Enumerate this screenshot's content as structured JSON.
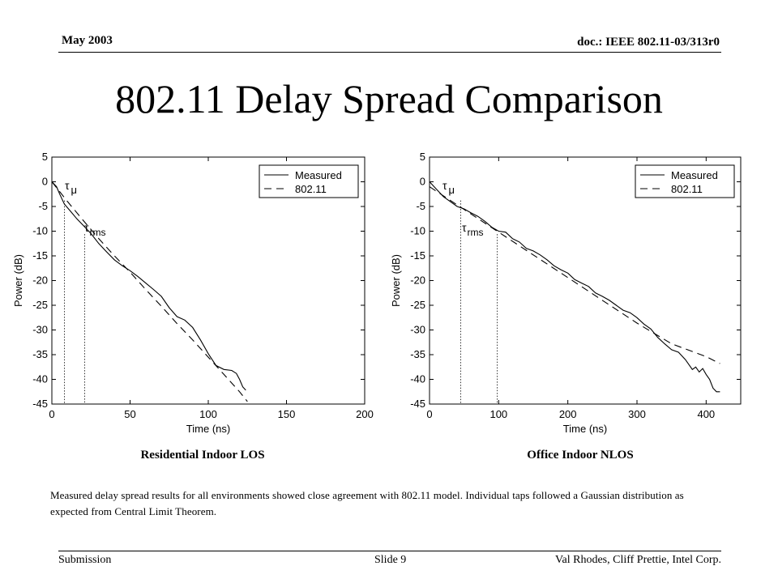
{
  "header": {
    "date": "May 2003",
    "doc": "doc.: IEEE 802.11-03/313r0"
  },
  "title": "802.11 Delay Spread Comparison",
  "chart_data": [
    {
      "type": "line",
      "xlabel": "Time (ns)",
      "ylabel": "Power (dB)",
      "xlim": [
        0,
        200
      ],
      "ylim": [
        -45,
        5
      ],
      "xticks": [
        0,
        50,
        100,
        150,
        200
      ],
      "yticks": [
        5,
        0,
        -5,
        -10,
        -15,
        -20,
        -25,
        -30,
        -35,
        -40,
        -45
      ],
      "legend": {
        "placement": "top-right",
        "entries": [
          "Measured",
          "802.11"
        ]
      },
      "annotations": {
        "tau_mu": 8,
        "tau_rms": 21
      },
      "series": [
        {
          "name": "Measured",
          "style": "solid",
          "x": [
            0,
            3,
            5,
            8,
            12,
            16,
            20,
            25,
            30,
            35,
            40,
            45,
            50,
            55,
            60,
            65,
            70,
            75,
            80,
            85,
            90,
            95,
            100,
            105,
            110,
            115,
            118,
            120,
            122,
            124
          ],
          "y": [
            0,
            -1,
            -2.5,
            -4.5,
            -6,
            -7.5,
            -8.8,
            -10.5,
            -12.5,
            -14.2,
            -15.8,
            -17,
            -18,
            -19.2,
            -20.5,
            -21.8,
            -23.2,
            -25.5,
            -27.3,
            -28,
            -29.5,
            -32,
            -34.8,
            -37.2,
            -38,
            -38.2,
            -38.8,
            -40,
            -41.5,
            -42.2
          ]
        },
        {
          "name": "802.11",
          "style": "dashed",
          "x": [
            0,
            10,
            20,
            30,
            40,
            50,
            60,
            70,
            80,
            90,
            100,
            110,
            120,
            125
          ],
          "y": [
            0,
            -4,
            -7.8,
            -11.5,
            -15,
            -18.3,
            -21.8,
            -25.2,
            -28.7,
            -32,
            -35.5,
            -39,
            -42.5,
            -44.5
          ]
        }
      ]
    },
    {
      "type": "line",
      "xlabel": "Time (ns)",
      "ylabel": "Power (dB)",
      "xlim": [
        0,
        450
      ],
      "ylim": [
        -45,
        5
      ],
      "xticks": [
        0,
        100,
        200,
        300,
        400
      ],
      "yticks": [
        5,
        0,
        -5,
        -10,
        -15,
        -20,
        -25,
        -30,
        -35,
        -40,
        -45
      ],
      "legend": {
        "placement": "top-right",
        "entries": [
          "Measured",
          "802.11"
        ]
      },
      "annotations": {
        "tau_mu": 45,
        "tau_rms": 98
      },
      "series": [
        {
          "name": "Measured",
          "style": "solid",
          "x": [
            0,
            10,
            20,
            30,
            40,
            50,
            60,
            70,
            80,
            90,
            100,
            110,
            120,
            130,
            140,
            150,
            160,
            170,
            180,
            190,
            200,
            210,
            220,
            230,
            240,
            250,
            260,
            270,
            280,
            290,
            300,
            310,
            320,
            330,
            340,
            350,
            360,
            370,
            375,
            380,
            385,
            390,
            395,
            400,
            405,
            410,
            415,
            420
          ],
          "y": [
            0,
            -1.5,
            -3,
            -4,
            -5,
            -5.5,
            -6.3,
            -7,
            -8,
            -9.2,
            -10,
            -10.2,
            -11.5,
            -12.2,
            -13.5,
            -14,
            -14.8,
            -15.8,
            -17,
            -17.8,
            -18.5,
            -19.8,
            -20.5,
            -21.2,
            -22.5,
            -23.2,
            -24,
            -25,
            -26,
            -26.5,
            -27.5,
            -28.8,
            -29.8,
            -31.5,
            -32.8,
            -34,
            -34.5,
            -36,
            -37,
            -38,
            -37.5,
            -38.5,
            -37.8,
            -39,
            -40,
            -41.8,
            -42.5,
            -42.5
          ]
        },
        {
          "name": "802.11",
          "style": "dashed",
          "x": [
            0,
            50,
            100,
            150,
            200,
            250,
            300,
            350,
            400,
            420
          ],
          "y": [
            -1,
            -5.6,
            -10.2,
            -14.8,
            -19.4,
            -24,
            -28.6,
            -32.8,
            -35.4,
            -36.8
          ]
        }
      ]
    }
  ],
  "captions": {
    "left": "Residential Indoor LOS",
    "right": "Office Indoor NLOS"
  },
  "note": "Measured delay spread results for all environments showed close agreement with 802.11 model.  Individual taps followed a Gaussian distribution as expected from Central Limit Theorem.",
  "footer": {
    "left": "Submission",
    "center": "Slide 9",
    "right": "Val Rhodes, Cliff Prettie, Intel Corp."
  }
}
